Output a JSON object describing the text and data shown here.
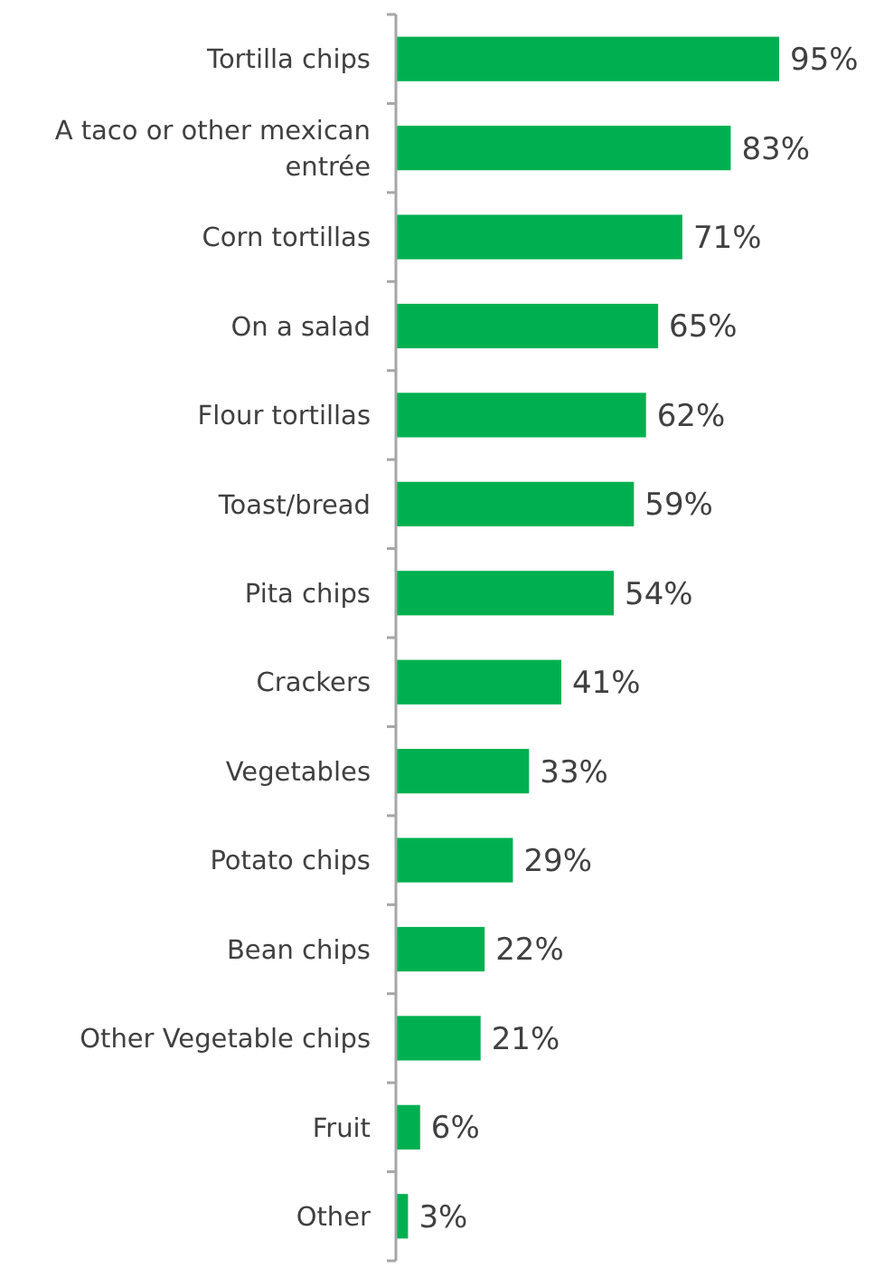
{
  "chart_data": {
    "type": "bar",
    "orientation": "horizontal",
    "categories": [
      "Tortilla chips",
      "A taco or other mexican entrée",
      "Corn tortillas",
      "On a salad",
      "Flour tortillas",
      "Toast/bread",
      "Pita chips",
      "Crackers",
      "Vegetables",
      "Potato chips",
      "Bean chips",
      "Other Vegetable chips",
      "Fruit",
      "Other"
    ],
    "values": [
      95,
      83,
      71,
      65,
      62,
      59,
      54,
      41,
      33,
      29,
      22,
      21,
      6,
      3
    ],
    "value_labels": [
      "95%",
      "83%",
      "71%",
      "65%",
      "62%",
      "59%",
      "54%",
      "41%",
      "33%",
      "29%",
      "22%",
      "21%",
      "6%",
      "3%"
    ],
    "color": "#00b050"
  }
}
